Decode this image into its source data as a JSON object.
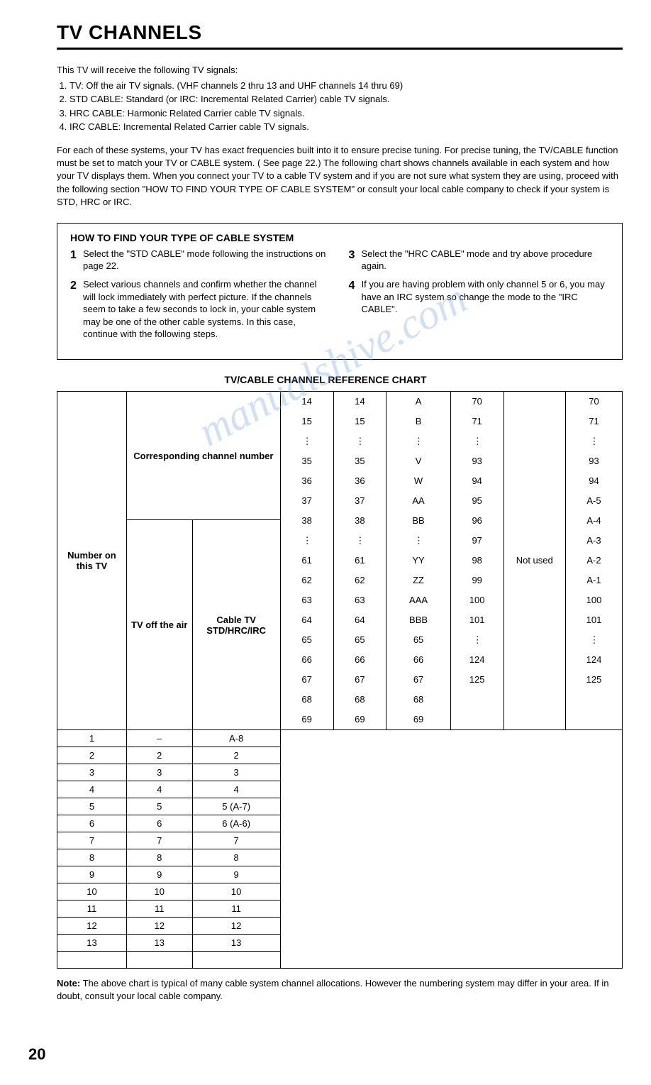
{
  "title": "TV CHANNELS",
  "intro_lead": "This TV will receive the following TV signals:",
  "intro_items": [
    "TV: Off the air TV signals. (VHF channels 2 thru 13 and UHF channels 14 thru 69)",
    "STD CABLE: Standard (or IRC: Incremental Related Carrier) cable TV signals.",
    "HRC CABLE: Harmonic Related Carrier cable TV signals.",
    "IRC CABLE: Incremental Related Carrier cable TV signals."
  ],
  "para": "For each of these systems, your TV has exact frequencies built into it to ensure precise tuning. For precise tuning, the TV/CABLE function must be set to match your TV or CABLE system. ( See page 22.) The following chart shows channels available in each system and how your TV displays them. When you connect your TV to a cable TV system and if you are not sure what system they are using, proceed with the following section \"HOW TO FIND YOUR TYPE OF CABLE SYSTEM\" or consult your local cable company to check if your system is STD, HRC or IRC.",
  "box_title": "HOW TO FIND YOUR TYPE OF CABLE SYSTEM",
  "steps_left": [
    {
      "n": "1",
      "t": "Select the \"STD CABLE\" mode following the instructions on page 22."
    },
    {
      "n": "2",
      "t": "Select various channels and confirm whether the channel will lock immediately with perfect picture. If the channels seem to take a few seconds to lock in, your cable system may be one of the other cable systems. In this case, continue with the following steps."
    }
  ],
  "steps_right": [
    {
      "n": "3",
      "t": "Select the \"HRC CABLE\" mode and try above procedure again."
    },
    {
      "n": "4",
      "t": "If you are having problem with only channel 5 or 6, you may have an IRC system so change the mode to the \"IRC CABLE\"."
    }
  ],
  "chart_title": "TV/CABLE CHANNEL REFERENCE CHART",
  "hdr_num": "Number on this TV",
  "hdr_corr": "Corresponding channel number",
  "hdr_tvoff": "TV off the air",
  "hdr_cable": "Cable TV STD/HRC/IRC",
  "col1": [
    "1",
    "2",
    "3",
    "4",
    "5",
    "6",
    "7",
    "8",
    "9",
    "10",
    "11",
    "12",
    "13"
  ],
  "col2": [
    "–",
    "2",
    "3",
    "4",
    "5",
    "6",
    "7",
    "8",
    "9",
    "10",
    "11",
    "12",
    "13"
  ],
  "col3": [
    "A-8",
    "2",
    "3",
    "4",
    "5 (A-7)",
    "6 (A-6)",
    "7",
    "8",
    "9",
    "10",
    "11",
    "12",
    "13"
  ],
  "col4": [
    "14",
    "15",
    "⋮",
    "35",
    "36",
    "37",
    "38",
    "⋮",
    "61",
    "62",
    "63",
    "64",
    "65",
    "66",
    "67",
    "68",
    "69"
  ],
  "col5": [
    "14",
    "15",
    "⋮",
    "35",
    "36",
    "37",
    "38",
    "⋮",
    "61",
    "62",
    "63",
    "64",
    "65",
    "66",
    "67",
    "68",
    "69"
  ],
  "col6": [
    "A",
    "B",
    "⋮",
    "V",
    "W",
    "AA",
    "BB",
    "⋮",
    "YY",
    "ZZ",
    "AAA",
    "BBB",
    "65",
    "66",
    "67",
    "68",
    "69"
  ],
  "col7": [
    "70",
    "71",
    "⋮",
    "93",
    "94",
    "95",
    "96",
    "97",
    "98",
    "99",
    "100",
    "101",
    "⋮",
    "124",
    "125"
  ],
  "col8_label": "Not used",
  "col9": [
    "70",
    "71",
    "⋮",
    "93",
    "94",
    "A-5",
    "A-4",
    "A-3",
    "A-2",
    "A-1",
    "100",
    "101",
    "⋮",
    "124",
    "125"
  ],
  "note_label": "Note:",
  "note_text": "The above chart is typical of many cable system channel allocations. However the numbering system may differ in your area. If in doubt, consult your local cable company.",
  "page_num": "20",
  "watermark": "manualshive.com"
}
